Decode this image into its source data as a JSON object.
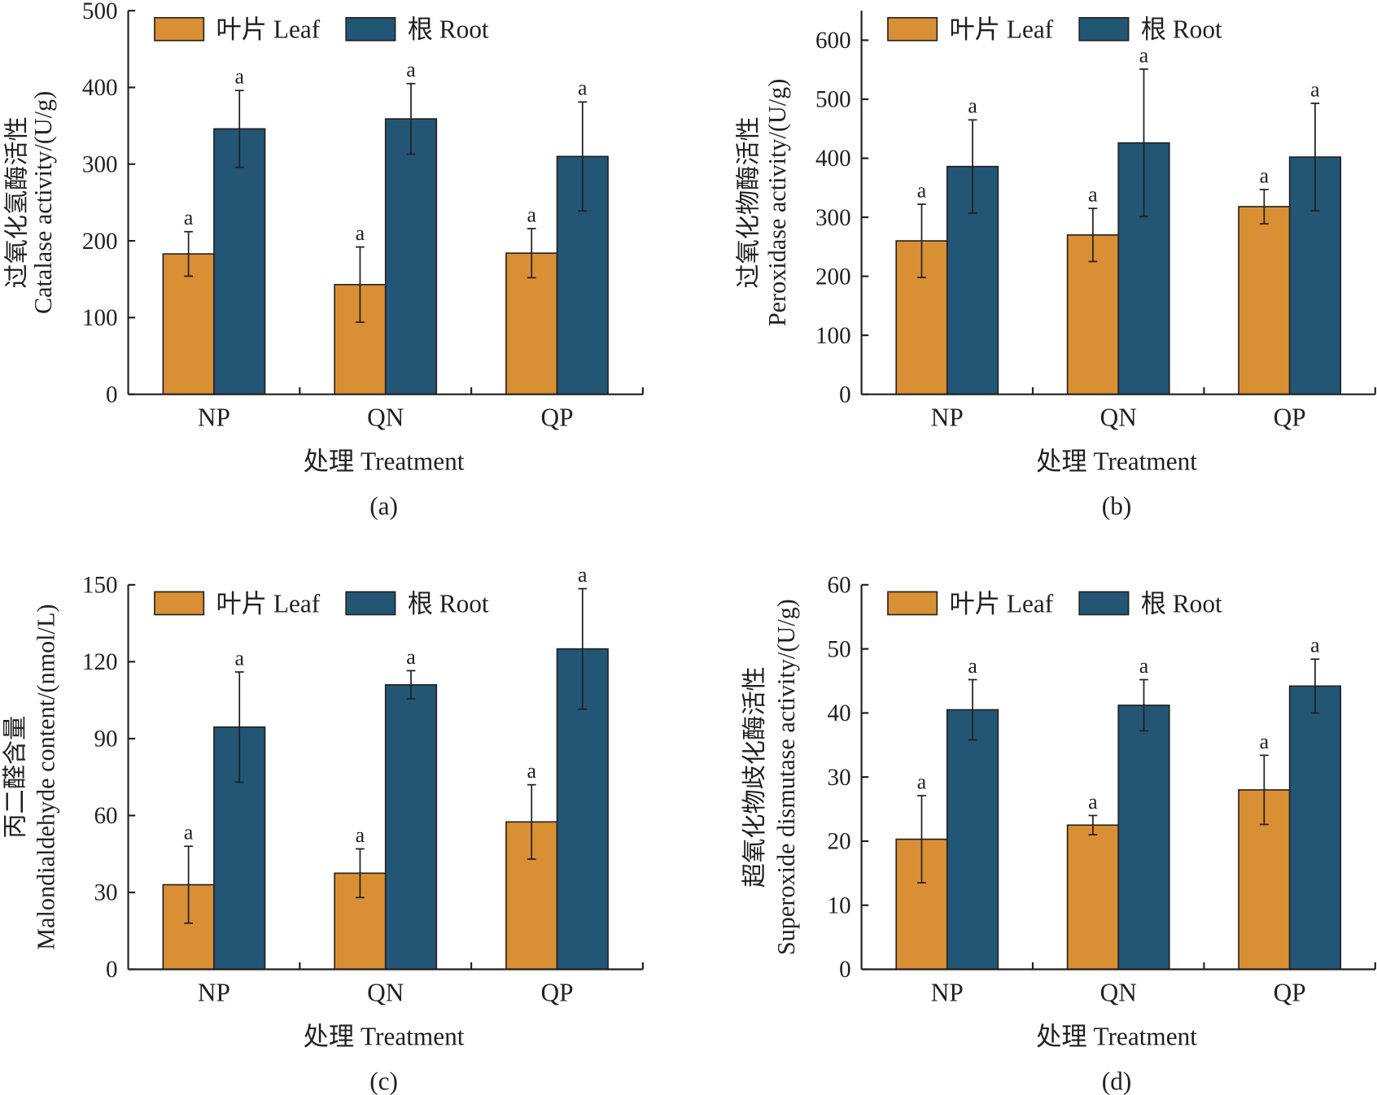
{
  "colors": {
    "leaf": "#d98f33",
    "root": "#235675",
    "axis": "#231f20"
  },
  "chart_data": [
    {
      "type": "bar",
      "panel_label": "(a)",
      "categories": [
        "NP",
        "QN",
        "QP"
      ],
      "xlabel": "处理 Treatment",
      "ylabel_cn": "过氧化氢酶活性",
      "ylabel_en": "Catalase activity/(U/g)",
      "ylim": [
        0,
        500
      ],
      "yticks": [
        0,
        100,
        200,
        300,
        400,
        500
      ],
      "legend": "top-left",
      "series": [
        {
          "name": "叶片 Leaf",
          "values": [
            183,
            143,
            184
          ],
          "errors": [
            29,
            49,
            32
          ],
          "labels": [
            "a",
            "a",
            "a"
          ]
        },
        {
          "name": "根 Root",
          "values": [
            346,
            359,
            310
          ],
          "errors": [
            50,
            46,
            71
          ],
          "labels": [
            "a",
            "a",
            "a"
          ]
        }
      ]
    },
    {
      "type": "bar",
      "panel_label": "(b)",
      "categories": [
        "NP",
        "QN",
        "QP"
      ],
      "xlabel": "处理 Treatment",
      "ylabel_cn": "过氧化物酶活性",
      "ylabel_en": "Peroxidase activity/(U/g)",
      "ylim": [
        0,
        650
      ],
      "yticks": [
        0,
        100,
        200,
        300,
        400,
        500,
        600
      ],
      "legend": "top-left",
      "series": [
        {
          "name": "叶片 Leaf",
          "values": [
            260,
            270,
            318
          ],
          "errors": [
            62,
            45,
            29
          ],
          "labels": [
            "a",
            "a",
            "a"
          ]
        },
        {
          "name": "根 Root",
          "values": [
            386,
            426,
            402
          ],
          "errors": [
            79,
            125,
            91
          ],
          "labels": [
            "a",
            "a",
            "a"
          ]
        }
      ]
    },
    {
      "type": "bar",
      "panel_label": "(c)",
      "categories": [
        "NP",
        "QN",
        "QP"
      ],
      "xlabel": "处理 Treatment",
      "ylabel_cn": "丙二醛含量",
      "ylabel_en": "Malondialdehyde content/(nmol/L)",
      "ylim": [
        0,
        150
      ],
      "yticks": [
        0,
        30,
        60,
        90,
        120,
        150
      ],
      "legend": "top-left",
      "series": [
        {
          "name": "叶片 Leaf",
          "values": [
            33,
            37.5,
            57.5
          ],
          "errors": [
            15,
            9.5,
            14.5
          ],
          "labels": [
            "a",
            "a",
            "a"
          ]
        },
        {
          "name": "根 Root",
          "values": [
            94.5,
            111,
            125
          ],
          "errors": [
            21.5,
            5.5,
            23.5
          ],
          "labels": [
            "a",
            "a",
            "a"
          ]
        }
      ]
    },
    {
      "type": "bar",
      "panel_label": "(d)",
      "categories": [
        "NP",
        "QN",
        "QP"
      ],
      "xlabel": "处理 Treatment",
      "ylabel_cn": "超氧化物歧化酶活性",
      "ylabel_en": "Superoxide dismutase activity/(U/g)",
      "ylim": [
        0,
        60
      ],
      "yticks": [
        0,
        10,
        20,
        30,
        40,
        50,
        60
      ],
      "legend": "top-left",
      "series": [
        {
          "name": "叶片 Leaf",
          "values": [
            20.3,
            22.5,
            28
          ],
          "errors": [
            6.8,
            1.5,
            5.4
          ],
          "labels": [
            "a",
            "a",
            "a"
          ]
        },
        {
          "name": "根 Root",
          "values": [
            40.5,
            41.2,
            44.2
          ],
          "errors": [
            4.7,
            4,
            4.2
          ],
          "labels": [
            "a",
            "a",
            "a"
          ]
        }
      ]
    }
  ]
}
